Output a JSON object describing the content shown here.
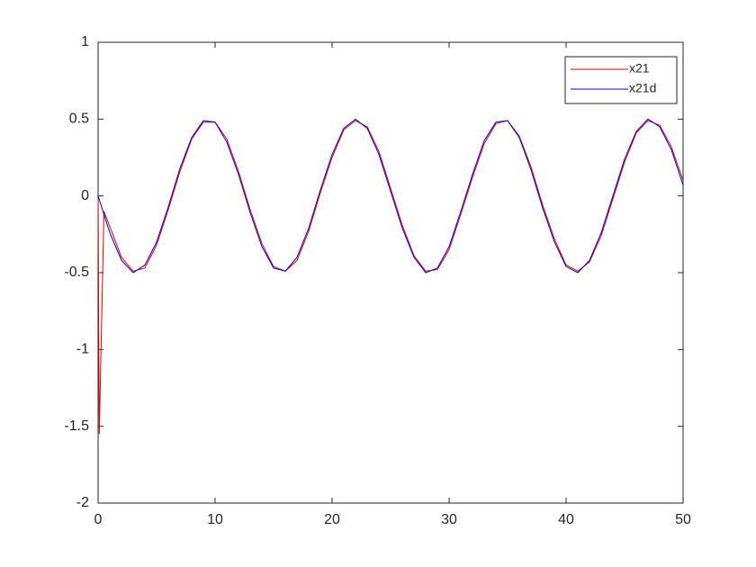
{
  "chart_data": {
    "type": "line",
    "xlim": [
      0,
      50
    ],
    "xticks": [
      0,
      10,
      20,
      30,
      40,
      50
    ],
    "ylim": [
      -2,
      1
    ],
    "yticks": [
      -2,
      -1.5,
      -1,
      -0.5,
      0,
      0.5,
      1
    ],
    "legend": "upper-right",
    "box": true,
    "series": [
      {
        "name": "x21",
        "color": "#e00000",
        "x": [
          0,
          0.1,
          0.5,
          1,
          2,
          3,
          4,
          5,
          6,
          7,
          8,
          9,
          10,
          11,
          12,
          13,
          14,
          15,
          16,
          17,
          18,
          19,
          20,
          21,
          22,
          23,
          24,
          25,
          26,
          27,
          28,
          29,
          30,
          31,
          32,
          33,
          34,
          35,
          36,
          37,
          38,
          39,
          40,
          41,
          42,
          43,
          44,
          45,
          46,
          47,
          48,
          49,
          50
        ],
        "values": [
          0,
          -1.55,
          -0.1,
          -0.2,
          -0.4,
          -0.49,
          -0.47,
          -0.32,
          -0.09,
          0.16,
          0.37,
          0.48,
          0.48,
          0.37,
          0.16,
          -0.09,
          -0.31,
          -0.46,
          -0.49,
          -0.42,
          -0.23,
          0.02,
          0.25,
          0.43,
          0.49,
          0.45,
          0.29,
          0.05,
          -0.19,
          -0.39,
          -0.49,
          -0.48,
          -0.35,
          -0.12,
          0.12,
          0.34,
          0.47,
          0.49,
          0.39,
          0.19,
          -0.06,
          -0.28,
          -0.45,
          -0.49,
          -0.43,
          -0.26,
          -0.02,
          0.22,
          0.41,
          0.49,
          0.46,
          0.32,
          0.1
        ]
      },
      {
        "name": "x21d",
        "color": "#0000e0",
        "x": [
          0,
          1,
          2,
          3,
          4,
          5,
          6,
          7,
          8,
          9,
          10,
          11,
          12,
          13,
          14,
          15,
          16,
          17,
          18,
          19,
          20,
          21,
          22,
          23,
          24,
          25,
          26,
          27,
          28,
          29,
          30,
          31,
          32,
          33,
          34,
          35,
          36,
          37,
          38,
          39,
          40,
          41,
          42,
          43,
          44,
          45,
          46,
          47,
          48,
          49,
          50
        ],
        "values": [
          0,
          -0.24,
          -0.42,
          -0.5,
          -0.45,
          -0.3,
          -0.07,
          0.18,
          0.38,
          0.49,
          0.48,
          0.35,
          0.14,
          -0.11,
          -0.33,
          -0.47,
          -0.49,
          -0.4,
          -0.21,
          0.04,
          0.27,
          0.44,
          0.5,
          0.44,
          0.27,
          0.03,
          -0.21,
          -0.4,
          -0.5,
          -0.47,
          -0.33,
          -0.1,
          0.14,
          0.36,
          0.48,
          0.49,
          0.38,
          0.17,
          -0.08,
          -0.3,
          -0.46,
          -0.5,
          -0.42,
          -0.24,
          0,
          0.24,
          0.42,
          0.5,
          0.45,
          0.3,
          0.07
        ]
      }
    ]
  }
}
